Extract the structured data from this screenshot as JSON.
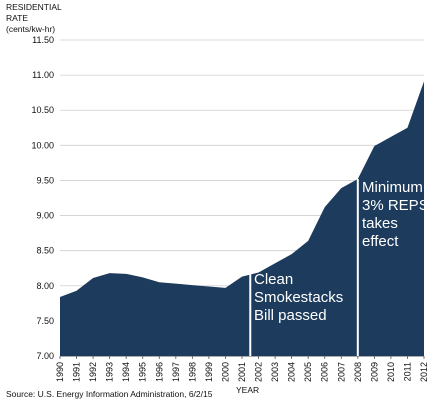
{
  "chart_data": {
    "type": "area",
    "ylabel_line1": "RESIDENTIAL",
    "ylabel_line2": "RATE",
    "ylabel_line3": "(cents/kw-hr)",
    "xlabel": "YEAR",
    "source": "Source: U.S. Energy Information Administration, 6/2/15",
    "ylim": [
      7.0,
      11.5
    ],
    "yticks": [
      "7.00",
      "7.50",
      "8.00",
      "8.50",
      "9.00",
      "9.50",
      "10.00",
      "10.50",
      "11.00",
      "11.50"
    ],
    "grid": true,
    "x": [
      "1990",
      "1991",
      "1992",
      "1993",
      "1994",
      "1995",
      "1996",
      "1997",
      "1998",
      "1999",
      "2000",
      "2001",
      "2002",
      "2003",
      "2004",
      "2005",
      "2006",
      "2007",
      "2008",
      "2009",
      "2010",
      "2011",
      "2012"
    ],
    "values": [
      7.84,
      7.93,
      8.11,
      8.18,
      8.17,
      8.12,
      8.05,
      8.03,
      8.01,
      7.99,
      7.97,
      8.13,
      8.19,
      8.32,
      8.45,
      8.64,
      9.12,
      9.39,
      9.52,
      9.99,
      10.12,
      10.25,
      10.91
    ],
    "fill_color": "#1d3b5c",
    "annotations": [
      {
        "x": "2001.5",
        "text": "Clean\nSmokestacks\nBill passed"
      },
      {
        "x": "2008",
        "text": "Minimum\n3% REPS\ntakes\neffect"
      }
    ]
  }
}
